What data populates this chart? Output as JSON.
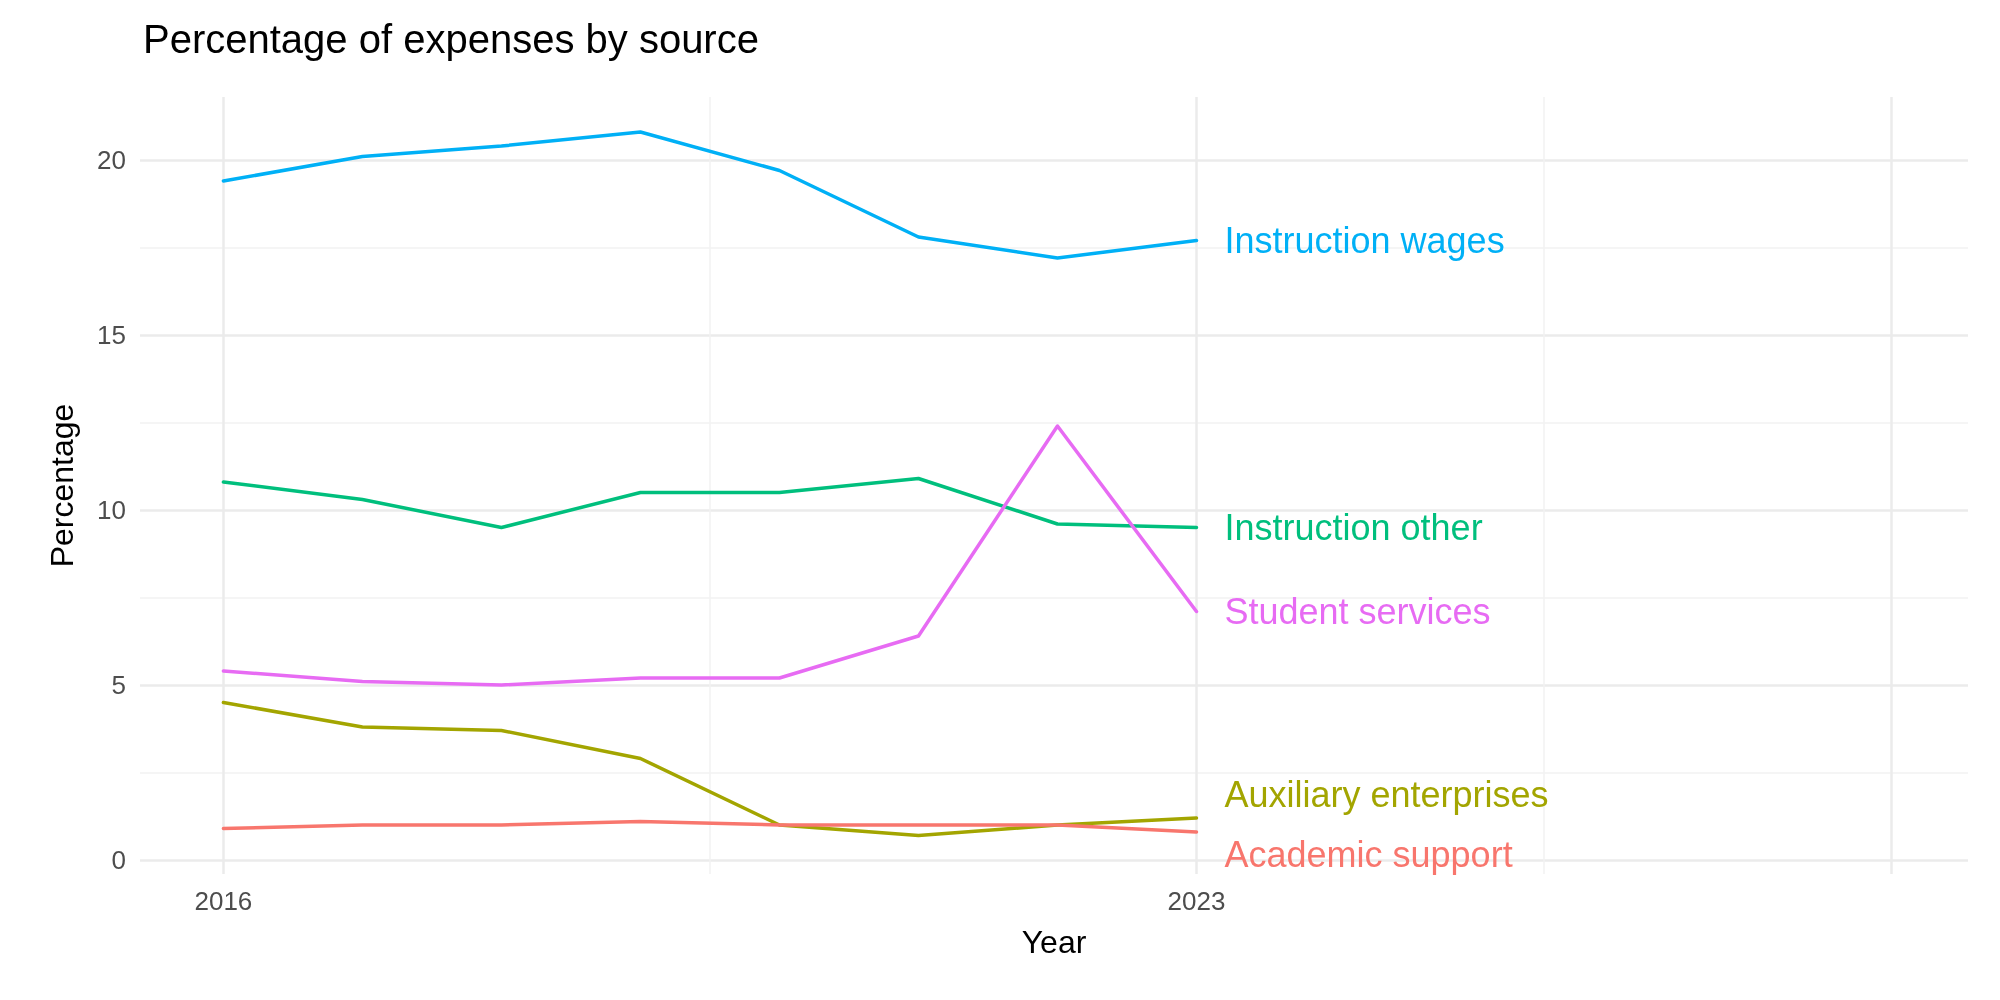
{
  "chart_data": {
    "type": "line",
    "title": "Percentage of expenses by source",
    "xlabel": "Year",
    "ylabel": "Percentage",
    "x": [
      2016,
      2017,
      2018,
      2019,
      2020,
      2021,
      2022,
      2023
    ],
    "series": [
      {
        "name": "Instruction wages",
        "color": "#00b0f6",
        "values": [
          19.4,
          20.1,
          20.4,
          20.8,
          19.7,
          17.8,
          17.2,
          17.7
        ]
      },
      {
        "name": "Instruction other",
        "color": "#00bf7d",
        "values": [
          10.8,
          10.3,
          9.5,
          10.5,
          10.5,
          10.9,
          9.6,
          9.5
        ]
      },
      {
        "name": "Student services",
        "color": "#e76bf3",
        "values": [
          5.4,
          5.1,
          5.0,
          5.2,
          5.2,
          6.4,
          12.4,
          7.1
        ]
      },
      {
        "name": "Auxiliary enterprises",
        "color": "#a3a500",
        "values": [
          4.5,
          3.8,
          3.7,
          2.9,
          1.0,
          0.7,
          1.0,
          1.2
        ]
      },
      {
        "name": "Academic support",
        "color": "#f8766d",
        "values": [
          0.9,
          1.0,
          1.0,
          1.1,
          1.0,
          1.0,
          1.0,
          0.8
        ]
      }
    ],
    "xlim": [
      2015.4,
      2028.55
    ],
    "xticks": [
      2016,
      2023,
      {
        "value": 2028,
        "label": null
      }
    ],
    "ylim": [
      -0.4,
      21.8
    ],
    "yticks": [
      0,
      5,
      10,
      15,
      20
    ],
    "grid": true,
    "legend": false,
    "marker": "none",
    "line_style": "solid"
  }
}
